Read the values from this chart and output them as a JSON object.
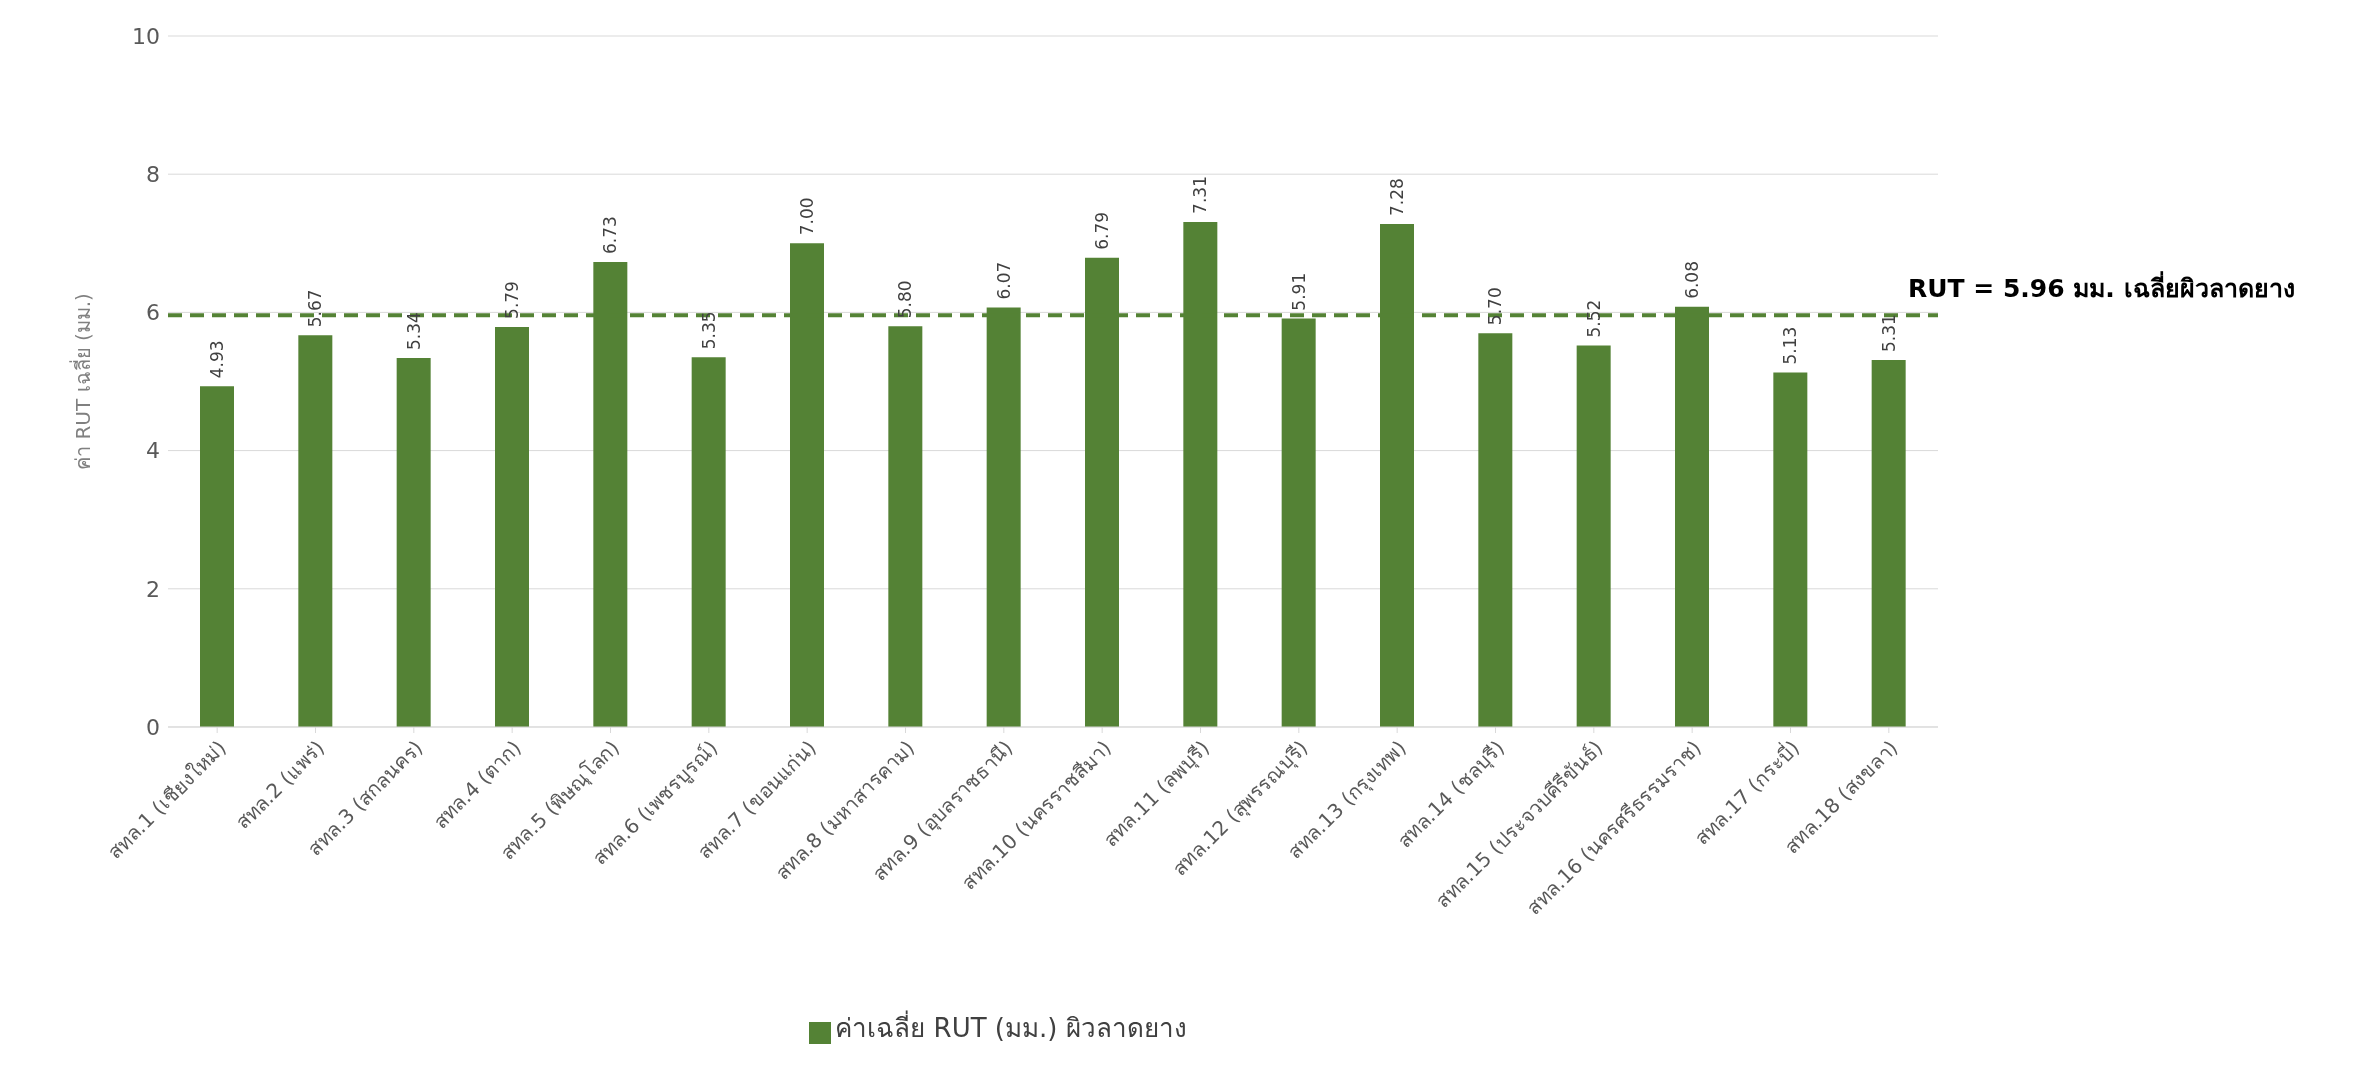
{
  "chart_data": {
    "type": "bar",
    "ylabel": "ค่า RUT เฉลี่ย (มม.)",
    "categories": [
      "สทล.1 (เชียงใหม่)",
      "สทล.2 (แพร่)",
      "สทล.3 (สกลนคร)",
      "สทล.4 (ตาก)",
      "สทล.5 (พิษณุโลก)",
      "สทล.6 (เพชรบูรณ์)",
      "สทล.7 (ขอนแก่น)",
      "สทล.8 (มหาสารคาม)",
      "สทล.9 (อุบลราชธานี)",
      "สทล.10 (นครราชสีมา)",
      "สทล.11 (ลพบุรี)",
      "สทล.12 (สุพรรณบุรี)",
      "สทล.13 (กรุงเทพ)",
      "สทล.14 (ชลบุรี)",
      "สทล.15 (ประจวบคีรีขันธ์)",
      "สทล.16 (นครศรีธรรมราช)",
      "สทล.17 (กระบี่)",
      "สทล.18 (สงขลา)"
    ],
    "series": [
      {
        "name": "ค่าเฉลี่ย RUT (มม.) ผิวลาดยาง",
        "color": "#548235",
        "values": [
          4.93,
          5.67,
          5.34,
          5.79,
          6.73,
          5.35,
          7.0,
          5.8,
          6.07,
          6.79,
          7.31,
          5.91,
          7.28,
          5.7,
          5.52,
          6.08,
          5.13,
          5.31
        ],
        "value_labels": [
          "4.93",
          "5.67",
          "5.34",
          "5.79",
          "6.73",
          "5.35",
          "7.00",
          "5.80",
          "6.07",
          "6.79",
          "7.31",
          "5.91",
          "7.28",
          "5.70",
          "5.52",
          "6.08",
          "5.13",
          "5.31"
        ]
      }
    ],
    "ylim": [
      0,
      10
    ],
    "yticks": [
      0,
      2,
      4,
      6,
      8,
      10
    ],
    "grid": "y",
    "legend": "bottom",
    "ref_lines": [
      {
        "axis": "y",
        "value": 5.96,
        "label": "RUT = 5.96 มม. เฉลี่ยผิวลาดยาง",
        "color": "#548235",
        "line_style": "dashed"
      }
    ]
  }
}
